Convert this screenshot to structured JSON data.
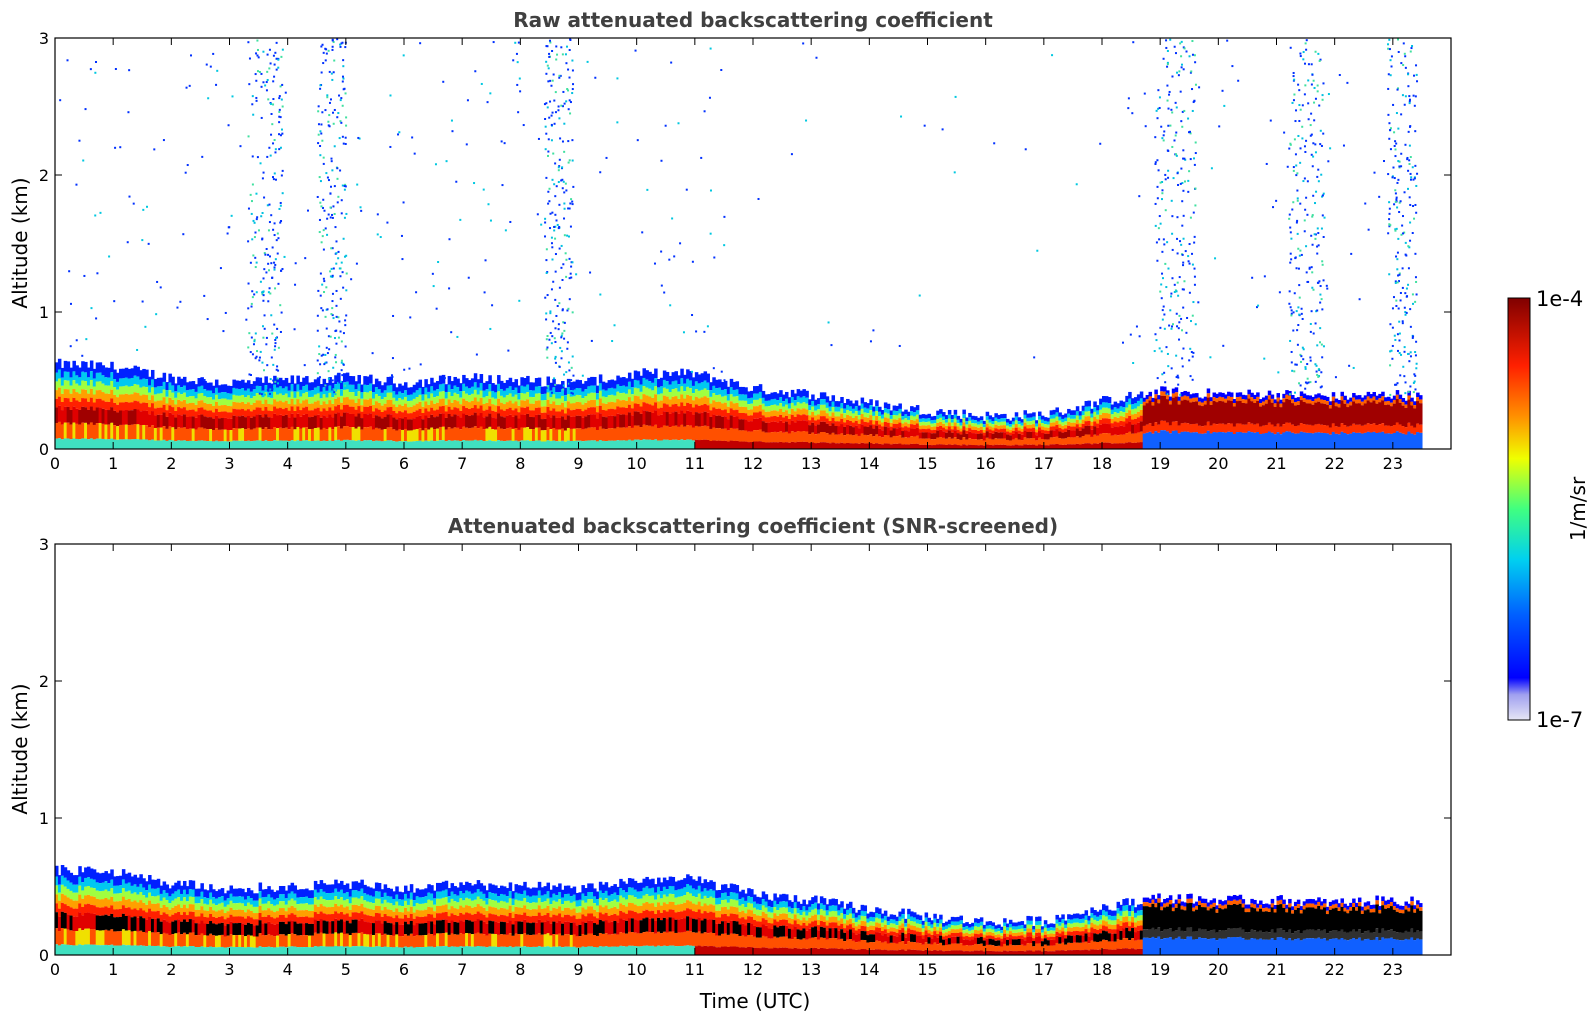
{
  "chart_data": [
    {
      "type": "heatmap",
      "title": "Raw attenuated backscattering coefficient",
      "xlabel": "",
      "ylabel": "Altitude (km)",
      "xlim": [
        0,
        24
      ],
      "ylim": [
        0,
        3
      ],
      "xticks": [
        "0",
        "1",
        "2",
        "3",
        "4",
        "5",
        "6",
        "7",
        "8",
        "9",
        "10",
        "11",
        "12",
        "13",
        "14",
        "15",
        "16",
        "17",
        "18",
        "19",
        "20",
        "21",
        "22",
        "23"
      ],
      "yticks": [
        "0",
        "1",
        "2",
        "3"
      ],
      "data_end_hour": 23.5,
      "noise_columns_hours": [
        [
          3.3,
          3.9
        ],
        [
          4.5,
          5.0
        ],
        [
          8.4,
          8.9
        ],
        [
          18.9,
          19.6
        ],
        [
          21.2,
          21.8
        ],
        [
          22.9,
          23.4
        ]
      ],
      "boundary_layer_top_km": [
        [
          0,
          0.62
        ],
        [
          1,
          0.6
        ],
        [
          2,
          0.52
        ],
        [
          3,
          0.48
        ],
        [
          4,
          0.5
        ],
        [
          5,
          0.52
        ],
        [
          6,
          0.48
        ],
        [
          7,
          0.52
        ],
        [
          8,
          0.5
        ],
        [
          9,
          0.48
        ],
        [
          10,
          0.55
        ],
        [
          11,
          0.55
        ],
        [
          12,
          0.44
        ],
        [
          13,
          0.4
        ],
        [
          14,
          0.33
        ],
        [
          15,
          0.28
        ],
        [
          16,
          0.24
        ],
        [
          17,
          0.25
        ],
        [
          18,
          0.35
        ],
        [
          19,
          0.42
        ],
        [
          20,
          0.4
        ],
        [
          21,
          0.4
        ],
        [
          22,
          0.38
        ],
        [
          23,
          0.4
        ],
        [
          23.5,
          0.38
        ]
      ]
    },
    {
      "type": "heatmap",
      "title": "Attenuated backscattering coefficient (SNR-screened)",
      "xlabel": "Time (UTC)",
      "ylabel": "Altitude (km)",
      "xlim": [
        0,
        24
      ],
      "ylim": [
        0,
        3
      ],
      "xticks": [
        "0",
        "1",
        "2",
        "3",
        "4",
        "5",
        "6",
        "7",
        "8",
        "9",
        "10",
        "11",
        "12",
        "13",
        "14",
        "15",
        "16",
        "17",
        "18",
        "19",
        "20",
        "21",
        "22",
        "23"
      ],
      "yticks": [
        "0",
        "1",
        "2",
        "3"
      ],
      "data_end_hour": 23.5
    }
  ],
  "colorbar": {
    "label": "1/m/sr",
    "min_label": "1e-7",
    "max_label": "1e-4",
    "colors": [
      "#e6e6f5",
      "#c8c8f0",
      "#a0a0f0",
      "#0000ff",
      "#0050ff",
      "#00a0ff",
      "#00e0e0",
      "#40ff80",
      "#c0ff40",
      "#ffff00",
      "#ffc000",
      "#ff8000",
      "#ff3000",
      "#e00000",
      "#a00000",
      "#800000"
    ]
  }
}
